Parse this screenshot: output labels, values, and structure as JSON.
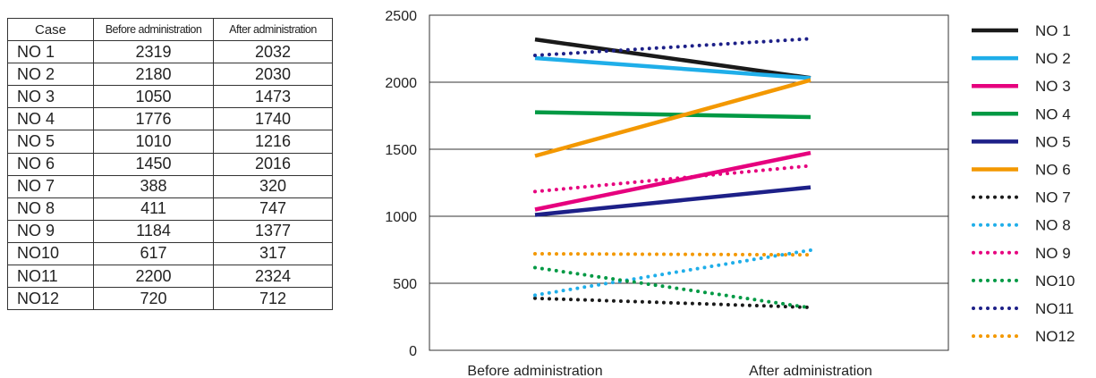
{
  "table": {
    "headers": [
      "Case",
      "Before administration",
      "After administration"
    ],
    "rows": [
      [
        "NO  1",
        "2319",
        "2032"
      ],
      [
        "NO  2",
        "2180",
        "2030"
      ],
      [
        "NO  3",
        "1050",
        "1473"
      ],
      [
        "NO  4",
        "1776",
        "1740"
      ],
      [
        "NO  5",
        "1010",
        "1216"
      ],
      [
        "NO  6",
        "1450",
        "2016"
      ],
      [
        "NO  7",
        "388",
        "320"
      ],
      [
        "NO  8",
        "411",
        "747"
      ],
      [
        "NO  9",
        "1184",
        "1377"
      ],
      [
        "NO10",
        "617",
        "317"
      ],
      [
        "NO11",
        "2200",
        "2324"
      ],
      [
        "NO12",
        "720",
        "712"
      ]
    ]
  },
  "chart_data": {
    "type": "line",
    "categories": [
      "Before administration",
      "After administration"
    ],
    "ylim": [
      0,
      2500
    ],
    "yticks": [
      0,
      500,
      1000,
      1500,
      2000,
      2500
    ],
    "grid": true,
    "legend_position": "right",
    "series": [
      {
        "name": "NO  1",
        "values": [
          2319,
          2032
        ],
        "color": "#1a1a1a",
        "style": "solid"
      },
      {
        "name": "NO  2",
        "values": [
          2180,
          2030
        ],
        "color": "#1faee9",
        "style": "solid"
      },
      {
        "name": "NO  3",
        "values": [
          1050,
          1473
        ],
        "color": "#e6007e",
        "style": "solid"
      },
      {
        "name": "NO  4",
        "values": [
          1776,
          1740
        ],
        "color": "#009944",
        "style": "solid"
      },
      {
        "name": "NO  5",
        "values": [
          1010,
          1216
        ],
        "color": "#1d2088",
        "style": "solid"
      },
      {
        "name": "NO  6",
        "values": [
          1450,
          2016
        ],
        "color": "#f39800",
        "style": "solid"
      },
      {
        "name": "NO  7",
        "values": [
          388,
          320
        ],
        "color": "#1a1a1a",
        "style": "dotted"
      },
      {
        "name": "NO  8",
        "values": [
          411,
          747
        ],
        "color": "#1faee9",
        "style": "dotted"
      },
      {
        "name": "NO  9",
        "values": [
          1184,
          1377
        ],
        "color": "#e6007e",
        "style": "dotted"
      },
      {
        "name": "NO10",
        "values": [
          617,
          317
        ],
        "color": "#009944",
        "style": "dotted"
      },
      {
        "name": "NO11",
        "values": [
          2200,
          2324
        ],
        "color": "#1d2088",
        "style": "dotted"
      },
      {
        "name": "NO12",
        "values": [
          720,
          712
        ],
        "color": "#f39800",
        "style": "dotted"
      }
    ]
  }
}
